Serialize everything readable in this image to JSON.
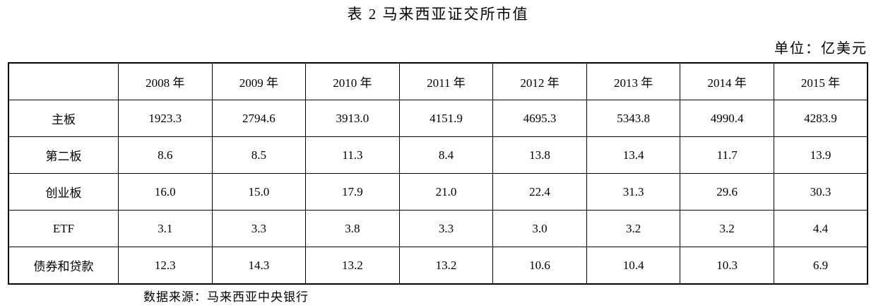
{
  "title": "表 2 马来西亚证交所市值",
  "unit_note": "单位：亿美元",
  "table": {
    "corner_label": "",
    "columns": [
      "2008 年",
      "2009 年",
      "2010 年",
      "2011 年",
      "2012 年",
      "2013 年",
      "2014 年",
      "2015 年"
    ],
    "rows": [
      {
        "label": "主板",
        "values": [
          "1923.3",
          "2794.6",
          "3913.0",
          "4151.9",
          "4695.3",
          "5343.8",
          "4990.4",
          "4283.9"
        ]
      },
      {
        "label": "第二板",
        "values": [
          "8.6",
          "8.5",
          "11.3",
          "8.4",
          "13.8",
          "13.4",
          "11.7",
          "13.9"
        ]
      },
      {
        "label": "创业板",
        "values": [
          "16.0",
          "15.0",
          "17.9",
          "21.0",
          "22.4",
          "31.3",
          "29.6",
          "30.3"
        ]
      },
      {
        "label": "ETF",
        "values": [
          "3.1",
          "3.3",
          "3.8",
          "3.3",
          "3.0",
          "3.2",
          "3.2",
          "4.4"
        ]
      },
      {
        "label": "债券和贷款",
        "values": [
          "12.3",
          "14.3",
          "13.2",
          "13.2",
          "10.6",
          "10.4",
          "10.3",
          "6.9"
        ]
      }
    ]
  },
  "source_note": "数据来源：马来西亚中央银行",
  "colors": {
    "text": "#000000",
    "border": "#000000",
    "background": "#ffffff"
  }
}
